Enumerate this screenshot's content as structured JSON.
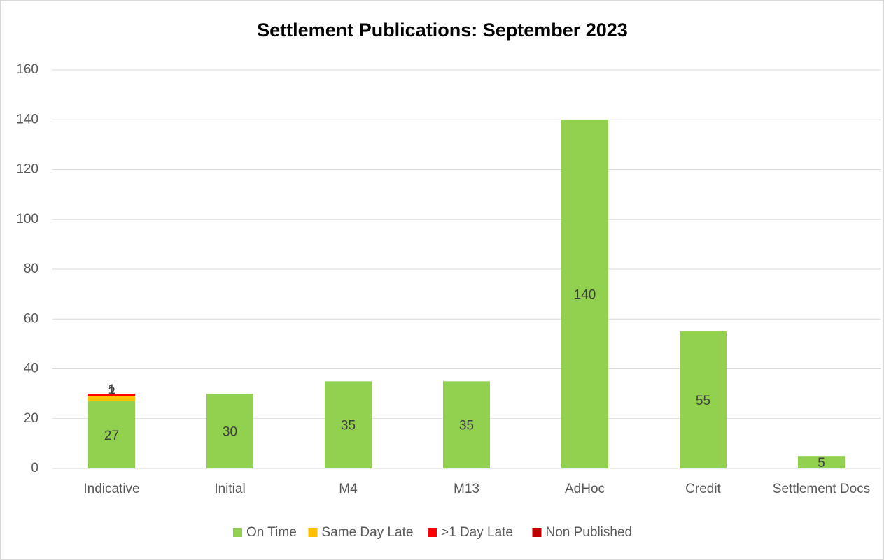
{
  "chart_data": {
    "type": "stacked_bar",
    "title": "Settlement Publications: September 2023",
    "categories": [
      "Indicative",
      "Initial",
      "M4",
      "M13",
      "AdHoc",
      "Credit",
      "Settlement Docs"
    ],
    "series": [
      {
        "name": "On Time",
        "color": "#92d050",
        "values": [
          27,
          30,
          35,
          35,
          140,
          55,
          5
        ]
      },
      {
        "name": "Same Day Late",
        "color": "#ffc000",
        "values": [
          2,
          0,
          0,
          0,
          0,
          0,
          0
        ]
      },
      {
        "name": ">1 Day Late",
        "color": "#ff0000",
        "values": [
          1,
          0,
          0,
          0,
          0,
          0,
          0
        ]
      },
      {
        "name": "Non Published",
        "color": "#c00000",
        "values": [
          0,
          0,
          0,
          0,
          0,
          0,
          0
        ]
      }
    ],
    "ylim": [
      0,
      160
    ],
    "yticks": [
      0,
      20,
      40,
      60,
      80,
      100,
      120,
      140,
      160
    ],
    "grid": true,
    "legend": "bottom"
  }
}
